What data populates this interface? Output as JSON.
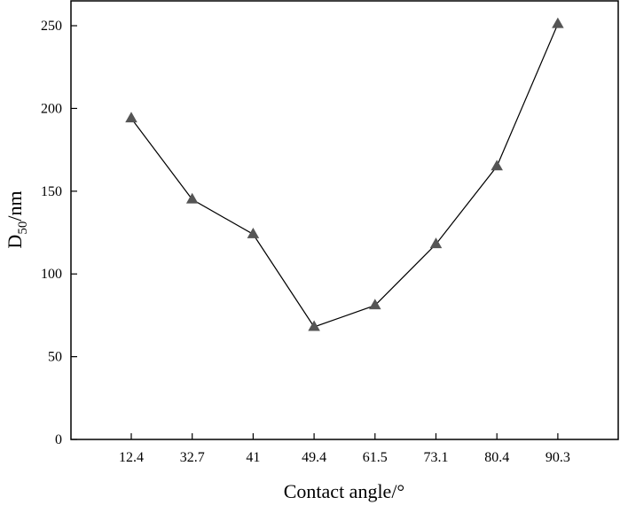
{
  "chart_data": {
    "type": "line",
    "xlabel": "Contact angle/°",
    "ylabel": {
      "main": "D",
      "sub": "50",
      "unit": "/nm"
    },
    "categories": [
      "12.4",
      "32.7",
      "41",
      "49.4",
      "61.5",
      "73.1",
      "80.4",
      "90.3"
    ],
    "series": [
      {
        "values": [
          194,
          145,
          124,
          68,
          81,
          118,
          165,
          251
        ],
        "marker": "triangle",
        "color": "#555555",
        "line_color": "#000000"
      }
    ],
    "ylim": [
      0,
      265
    ],
    "yticks": [
      0,
      50,
      100,
      150,
      200,
      250
    ],
    "grid": false,
    "legend": "none"
  }
}
